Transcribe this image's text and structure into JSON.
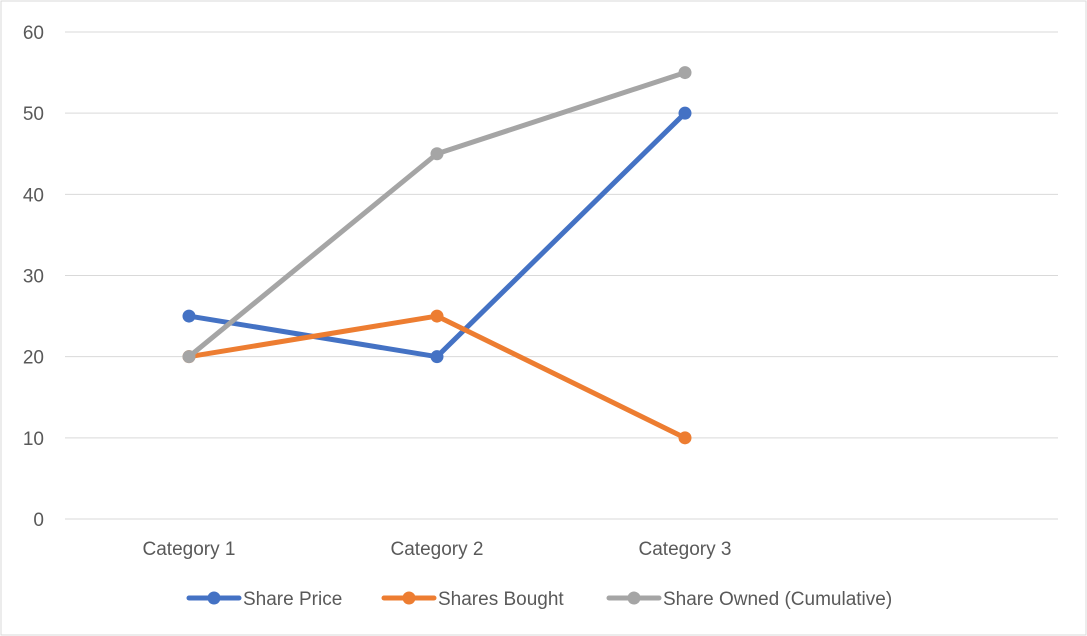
{
  "chart_data": {
    "type": "line",
    "title": "",
    "xlabel": "",
    "ylabel": "",
    "categories": [
      "Category 1",
      "Category 2",
      "Category 3"
    ],
    "ylim": [
      0,
      60
    ],
    "yticks": [
      0,
      10,
      20,
      30,
      40,
      50,
      60
    ],
    "grid": true,
    "legend_position": "bottom",
    "series": [
      {
        "name": "Share Price",
        "values": [
          25,
          20,
          50
        ],
        "color": "#4472C4"
      },
      {
        "name": "Shares Bought",
        "values": [
          20,
          25,
          10
        ],
        "color": "#ED7D31"
      },
      {
        "name": "Share Owned (Cumulative)",
        "values": [
          20,
          45,
          55
        ],
        "color": "#A5A5A5"
      }
    ]
  }
}
